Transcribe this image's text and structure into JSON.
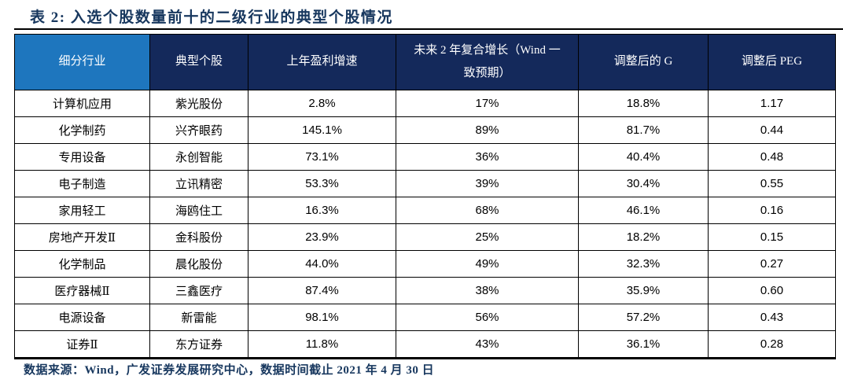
{
  "title": "表 2: 入选个股数量前十的二级行业的典型个股情况",
  "footer": "数据来源：Wind，广发证券发展研究中心，数据时间截止 2021 年 4 月 30 日",
  "colors": {
    "title_text": "#17375E",
    "header_bg": "#14295B",
    "header_first_col_bg": "#1E76BE",
    "header_text": "#FFFFFF",
    "body_text": "#000000",
    "footer_text": "#17375E",
    "rule": "#000000"
  },
  "table": {
    "headers": [
      "细分行业",
      "典型个股",
      "上年盈利增速",
      "未来 2 年复合增长（Wind 一致预期）",
      "调整后的 G",
      "调整后 PEG"
    ],
    "rows": [
      [
        "计算机应用",
        "紫光股份",
        "2.8%",
        "17%",
        "18.8%",
        "1.17"
      ],
      [
        "化学制药",
        "兴齐眼药",
        "145.1%",
        "89%",
        "81.7%",
        "0.44"
      ],
      [
        "专用设备",
        "永创智能",
        "73.1%",
        "36%",
        "40.4%",
        "0.48"
      ],
      [
        "电子制造",
        "立讯精密",
        "53.3%",
        "39%",
        "30.4%",
        "0.55"
      ],
      [
        "家用轻工",
        "海鸥住工",
        "16.3%",
        "68%",
        "46.1%",
        "0.16"
      ],
      [
        "房地产开发Ⅱ",
        "金科股份",
        "23.9%",
        "25%",
        "18.2%",
        "0.15"
      ],
      [
        "化学制品",
        "晨化股份",
        "44.0%",
        "49%",
        "32.3%",
        "0.27"
      ],
      [
        "医疗器械Ⅱ",
        "三鑫医疗",
        "87.4%",
        "38%",
        "35.9%",
        "0.60"
      ],
      [
        "电源设备",
        "新雷能",
        "98.1%",
        "56%",
        "57.2%",
        "0.43"
      ],
      [
        "证券Ⅱ",
        "东方证券",
        "11.8%",
        "43%",
        "36.1%",
        "0.28"
      ]
    ]
  },
  "chart_data": {
    "type": "table",
    "title": "表 2: 入选个股数量前十的二级行业的典型个股情况",
    "columns": [
      "细分行业",
      "典型个股",
      "上年盈利增速",
      "未来 2 年复合增长（Wind 一致预期）",
      "调整后的 G",
      "调整后 PEG"
    ],
    "rows": [
      [
        "计算机应用",
        "紫光股份",
        "2.8%",
        "17%",
        "18.8%",
        "1.17"
      ],
      [
        "化学制药",
        "兴齐眼药",
        "145.1%",
        "89%",
        "81.7%",
        "0.44"
      ],
      [
        "专用设备",
        "永创智能",
        "73.1%",
        "36%",
        "40.4%",
        "0.48"
      ],
      [
        "电子制造",
        "立讯精密",
        "53.3%",
        "39%",
        "30.4%",
        "0.55"
      ],
      [
        "家用轻工",
        "海鸥住工",
        "16.3%",
        "68%",
        "46.1%",
        "0.16"
      ],
      [
        "房地产开发Ⅱ",
        "金科股份",
        "23.9%",
        "25%",
        "18.2%",
        "0.15"
      ],
      [
        "化学制品",
        "晨化股份",
        "44.0%",
        "49%",
        "32.3%",
        "0.27"
      ],
      [
        "医疗器械Ⅱ",
        "三鑫医疗",
        "87.4%",
        "38%",
        "35.9%",
        "0.60"
      ],
      [
        "电源设备",
        "新雷能",
        "98.1%",
        "56%",
        "57.2%",
        "0.43"
      ],
      [
        "证券Ⅱ",
        "东方证券",
        "11.8%",
        "43%",
        "36.1%",
        "0.28"
      ]
    ]
  }
}
